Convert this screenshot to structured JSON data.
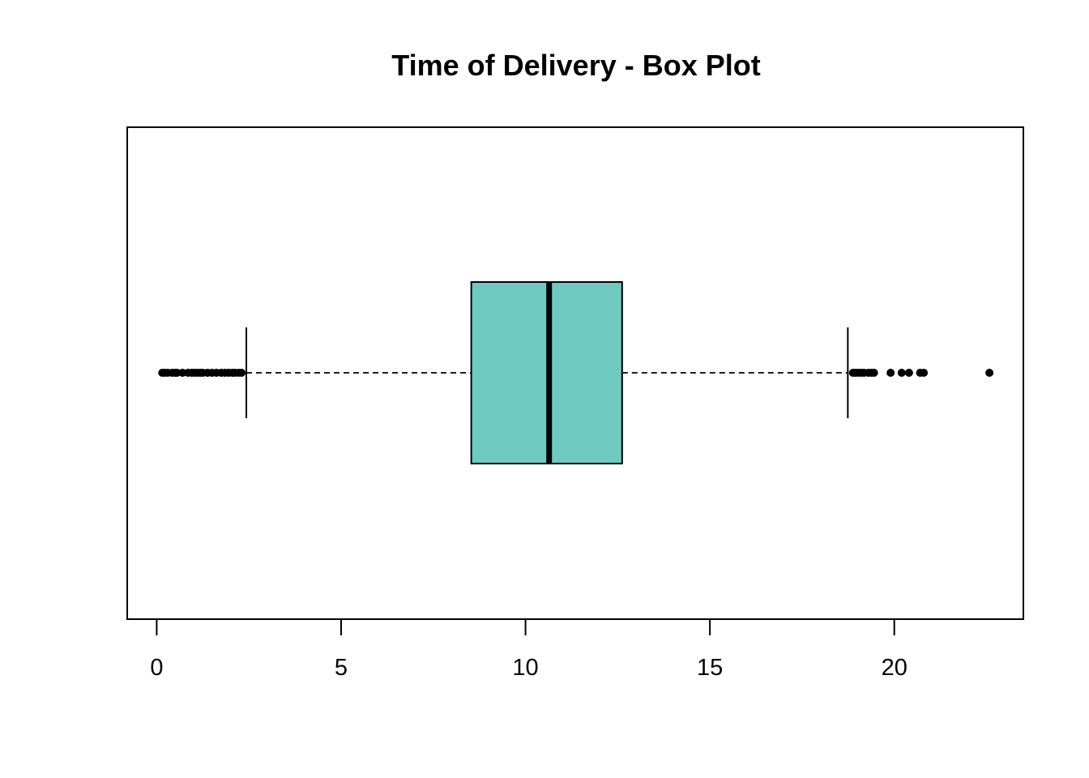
{
  "chart_data": {
    "type": "boxplot",
    "orientation": "horizontal",
    "title": "Time of Delivery - Box Plot",
    "xlabel": "",
    "ylabel": "",
    "xlim": [
      -0.8,
      23.5
    ],
    "x_ticks": [
      0,
      5,
      10,
      15,
      20
    ],
    "x_tick_labels": [
      "0",
      "5",
      "10",
      "15",
      "20"
    ],
    "grid": false,
    "legend": "none",
    "box": {
      "whisker_low": 2.43,
      "q1": 8.53,
      "median": 10.64,
      "q3": 12.62,
      "whisker_high": 18.74
    },
    "outliers": [
      0.15,
      0.22,
      0.3,
      0.42,
      0.5,
      0.55,
      0.7,
      0.85,
      0.95,
      1.02,
      1.1,
      1.18,
      1.25,
      1.38,
      1.5,
      1.62,
      1.75,
      1.85,
      1.95,
      2.05,
      2.12,
      2.22,
      2.3,
      18.88,
      18.95,
      19.02,
      19.1,
      19.18,
      19.3,
      19.38,
      19.45,
      19.9,
      20.2,
      20.4,
      20.7,
      20.8,
      22.58
    ],
    "colors": {
      "box_fill": "#6ECAC1",
      "stroke": "#000000"
    }
  }
}
